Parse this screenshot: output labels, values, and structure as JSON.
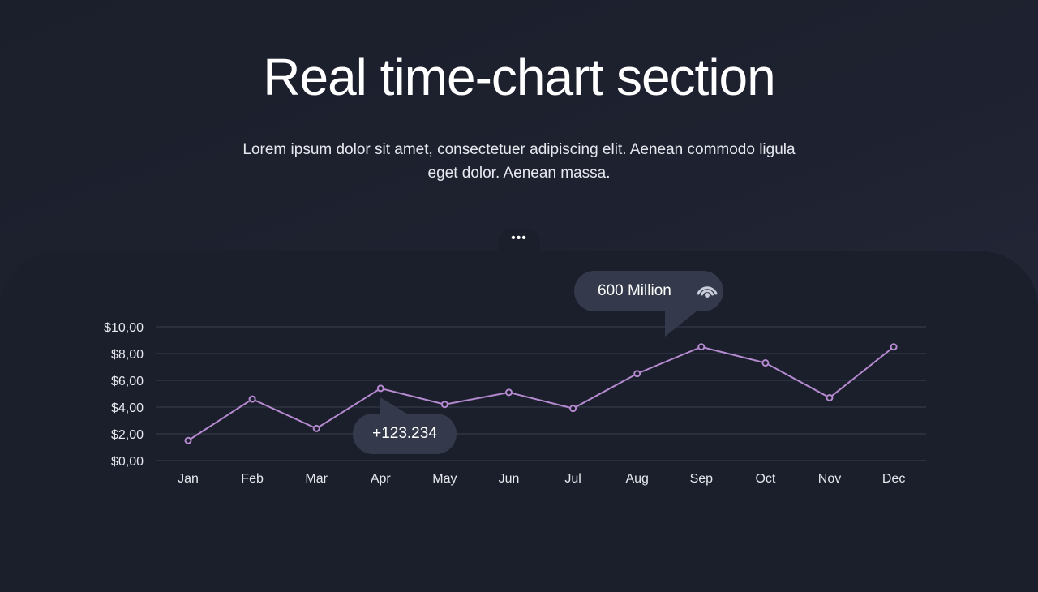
{
  "header": {
    "title": "Real time-chart section",
    "subtitle": "Lorem ipsum dolor sit amet, consectetuer adipiscing elit. Aenean commodo ligula eget dolor. Aenean massa."
  },
  "panel": {
    "menu_label": "•••",
    "menu_icon": "more-dots-icon"
  },
  "callouts": {
    "top": {
      "text": "600 Million",
      "icon": "signal-broadcast-icon"
    },
    "bottom": {
      "text": "+123.234"
    }
  },
  "colors": {
    "line": "#b58ad0",
    "grid": "#3a3f4f",
    "callout_bg": "#343a4b",
    "text": "#ffffff"
  },
  "chart_data": {
    "type": "line",
    "categories": [
      "Jan",
      "Feb",
      "Mar",
      "Apr",
      "May",
      "Jun",
      "Jul",
      "Aug",
      "Sep",
      "Oct",
      "Nov",
      "Dec"
    ],
    "series": [
      {
        "values": [
          1.5,
          4.6,
          2.4,
          5.4,
          4.2,
          5.1,
          3.9,
          6.5,
          8.5,
          7.3,
          4.7,
          8.5
        ]
      }
    ],
    "yticks": [
      "$0,00",
      "$2,00",
      "$4,00",
      "$6,00",
      "$8,00",
      "$10,00"
    ],
    "ylim": [
      0,
      10
    ],
    "grid": true
  }
}
